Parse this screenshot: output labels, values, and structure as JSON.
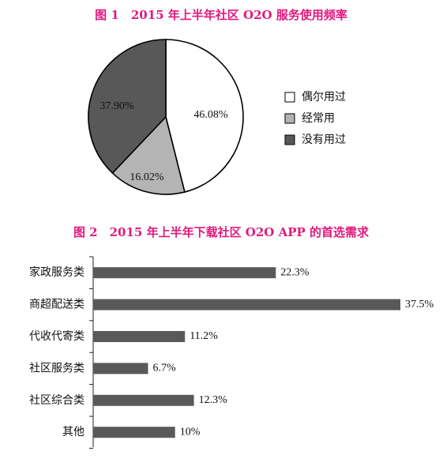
{
  "chart_data": [
    {
      "type": "pie",
      "title": "图 1　2015 年上半年社区 O2O 服务使用频率",
      "slices": [
        {
          "label": "偶尔用过",
          "value": 46.08,
          "value_label": "46.08%",
          "color": "#ffffff"
        },
        {
          "label": "经常用",
          "value": 16.02,
          "value_label": "16.02%",
          "color": "#b4b4b4"
        },
        {
          "label": "没有用过",
          "value": 37.9,
          "value_label": "37.90%",
          "color": "#585858"
        }
      ],
      "legend_position": "right"
    },
    {
      "type": "bar",
      "orientation": "horizontal",
      "title": "图 2　2015 年上半年下载社区 O2O APP 的首选需求",
      "categories": [
        "家政服务类",
        "商超配送类",
        "代收代寄类",
        "社区服务类",
        "社区综合类",
        "其他"
      ],
      "values": [
        22.3,
        37.5,
        11.2,
        6.7,
        12.3,
        10
      ],
      "value_labels": [
        "22.3%",
        "37.5%",
        "11.2%",
        "6.7%",
        "12.3%",
        "10%"
      ],
      "xlim": [
        0,
        40
      ],
      "bar_color": "#595959",
      "grid": false
    }
  ]
}
